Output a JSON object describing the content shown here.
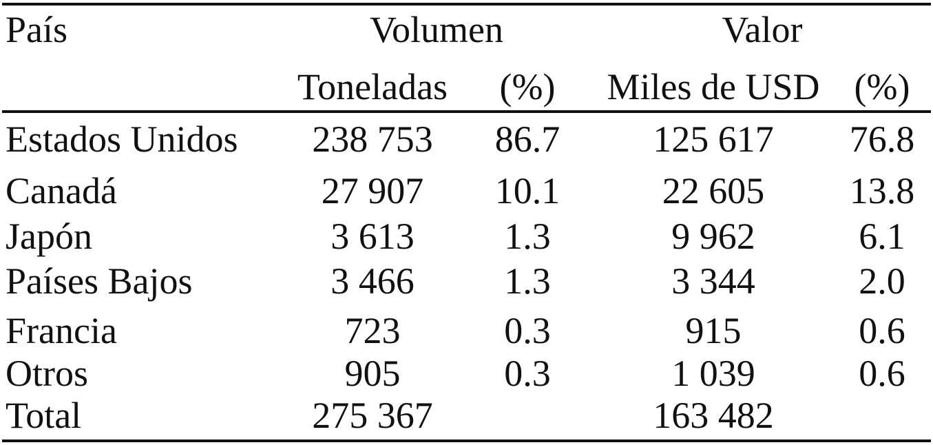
{
  "table": {
    "header": {
      "country": "País",
      "volume_group": "Volumen",
      "value_group": "Valor",
      "tons": "Toneladas",
      "volume_pct": "(%)",
      "usd": "Miles de USD",
      "value_pct": "(%)"
    },
    "rows": [
      {
        "country": "Estados Unidos",
        "tons": "238 753",
        "volume_pct": "86.7",
        "usd": "125 617",
        "value_pct": "76.8"
      },
      {
        "country": "Canadá",
        "tons": "27 907",
        "volume_pct": "10.1",
        "usd": "22 605",
        "value_pct": "13.8"
      },
      {
        "country": "Japón",
        "tons": "3 613",
        "volume_pct": "1.3",
        "usd": "9 962",
        "value_pct": "6.1"
      },
      {
        "country": "Países Bajos",
        "tons": "3 466",
        "volume_pct": "1.3",
        "usd": "3 344",
        "value_pct": "2.0"
      },
      {
        "country": "Francia",
        "tons": "723",
        "volume_pct": "0.3",
        "usd": "915",
        "value_pct": "0.6"
      },
      {
        "country": "Otros",
        "tons": "905",
        "volume_pct": "0.3",
        "usd": "1 039",
        "value_pct": "0.6"
      }
    ],
    "total": {
      "label": "Total",
      "tons": "275 367",
      "usd": "163 482"
    }
  }
}
